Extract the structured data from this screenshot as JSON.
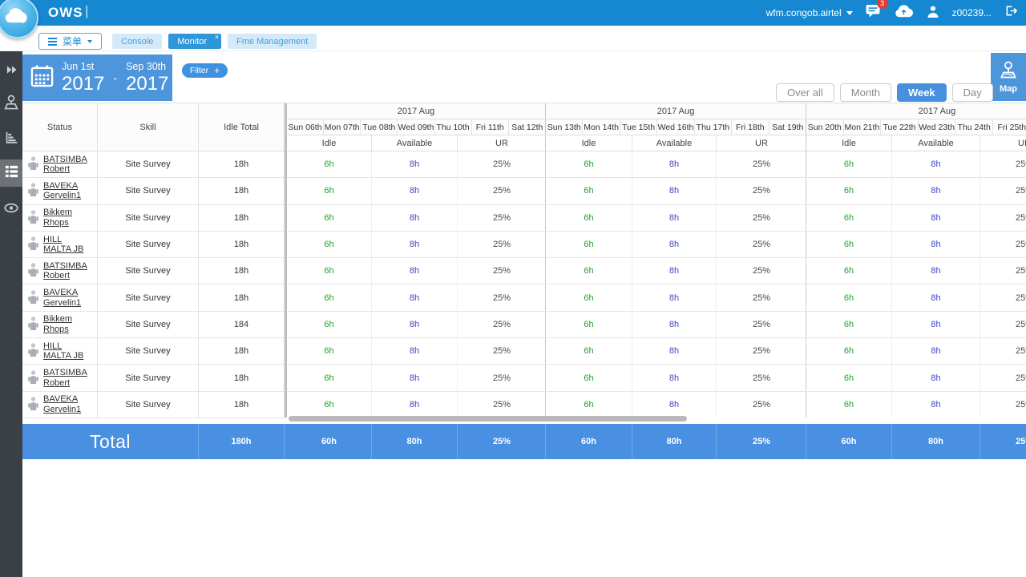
{
  "top_header": {
    "app_name": "OWS",
    "title_divider": "|",
    "account": "wfm.congob.airtel",
    "notification_count": "3",
    "user_id": "z00239..."
  },
  "tab_bar": {
    "menu_label": "菜单",
    "close_glyph": "×",
    "tabs": [
      {
        "label": "Console",
        "active": false
      },
      {
        "label": "Monitor",
        "active": true
      },
      {
        "label": "Fme Management",
        "active": false
      }
    ]
  },
  "toolbar": {
    "date_range": {
      "start_day": "Jun 1st",
      "start_year": "2017",
      "separator": "-",
      "end_day": "Sep 30th",
      "end_year": "2017"
    },
    "filter": {
      "label": "Filter",
      "plus": "+"
    },
    "map_label": "Map",
    "view_buttons": [
      {
        "label": "Over all",
        "active": false
      },
      {
        "label": "Month",
        "active": false
      },
      {
        "label": "Week",
        "active": true
      },
      {
        "label": "Day",
        "active": false
      }
    ]
  },
  "table": {
    "fixed_columns": [
      "Status",
      "Skill",
      "Idle Total"
    ],
    "week_groups": [
      {
        "month": "2017 Aug",
        "days": [
          "Sun 06th",
          "Mon 07th",
          "Tue 08th",
          "Wed 09th",
          "Thu 10th",
          "Fri 11th",
          "Sat 12th"
        ],
        "subcolumns": [
          "Idle",
          "Available",
          "UR"
        ]
      },
      {
        "month": "2017 Aug",
        "days": [
          "Sun 13th",
          "Mon 14th",
          "Tue 15th",
          "Wed 16th",
          "Thu 17th",
          "Fri 18th",
          "Sat 19th"
        ],
        "subcolumns": [
          "Idle",
          "Available",
          "UR"
        ]
      },
      {
        "month": "2017 Aug",
        "days": [
          "Sun 20th",
          "Mon 21th",
          "Tue 22th",
          "Wed 23th",
          "Thu 24th",
          "Fri 25th"
        ],
        "subcolumns": [
          "Idle",
          "Available",
          "UR"
        ]
      }
    ],
    "rows": [
      {
        "name_line1": "BATSIMBA",
        "name_line2": "Robert",
        "skill": "Site Survey",
        "idle_total": "18h",
        "idle": "6h",
        "available": "8h",
        "ur": "25%"
      },
      {
        "name_line1": "BAVEKA",
        "name_line2": "Gervelin1",
        "skill": "Site Survey",
        "idle_total": "18h",
        "idle": "6h",
        "available": "8h",
        "ur": "25%"
      },
      {
        "name_line1": "Bikkem",
        "name_line2": "Rhops",
        "skill": "Site Survey",
        "idle_total": "18h",
        "idle": "6h",
        "available": "8h",
        "ur": "25%"
      },
      {
        "name_line1": "HILL",
        "name_line2": "MALTA JB",
        "skill": "Site Survey",
        "idle_total": "18h",
        "idle": "6h",
        "available": "8h",
        "ur": "25%"
      },
      {
        "name_line1": "BATSIMBA",
        "name_line2": "Robert",
        "skill": "Site Survey",
        "idle_total": "18h",
        "idle": "6h",
        "available": "8h",
        "ur": "25%"
      },
      {
        "name_line1": "BAVEKA",
        "name_line2": "Gervelin1",
        "skill": "Site Survey",
        "idle_total": "18h",
        "idle": "6h",
        "available": "8h",
        "ur": "25%"
      },
      {
        "name_line1": "Bikkem",
        "name_line2": "Rhops",
        "skill": "Site Survey",
        "idle_total": "184",
        "idle": "6h",
        "available": "8h",
        "ur": "25%"
      },
      {
        "name_line1": "HILL",
        "name_line2": "MALTA JB",
        "skill": "Site Survey",
        "idle_total": "18h",
        "idle": "6h",
        "available": "8h",
        "ur": "25%"
      },
      {
        "name_line1": "BATSIMBA",
        "name_line2": "Robert",
        "skill": "Site Survey",
        "idle_total": "18h",
        "idle": "6h",
        "available": "8h",
        "ur": "25%"
      },
      {
        "name_line1": "BAVEKA",
        "name_line2": "Gervelin1",
        "skill": "Site Survey",
        "idle_total": "18h",
        "idle": "6h",
        "available": "8h",
        "ur": "25%"
      }
    ],
    "total_row": {
      "label": "Total",
      "idle_total": "180h",
      "group_values": {
        "idle": "60h",
        "available": "80h",
        "ur": "25%"
      }
    }
  },
  "sidebar": {
    "items": [
      {
        "icon": "double-chevron-right",
        "active": false
      },
      {
        "icon": "location-pin",
        "active": false
      },
      {
        "icon": "bar-chart",
        "active": false
      },
      {
        "icon": "table-list",
        "active": true
      },
      {
        "icon": "eye",
        "active": false
      }
    ]
  },
  "colors": {
    "header_blue": "#1588d1",
    "active_tab_blue": "#3096da",
    "light_tab_bg": "#d4eaf8",
    "panel_blue": "#4e96dc",
    "total_row_blue": "#4a90e2",
    "idle_green": "#1fa32b",
    "available_blue": "#3d46c9",
    "sidebar_dark": "#3b4046",
    "badge_red": "#e53935"
  }
}
